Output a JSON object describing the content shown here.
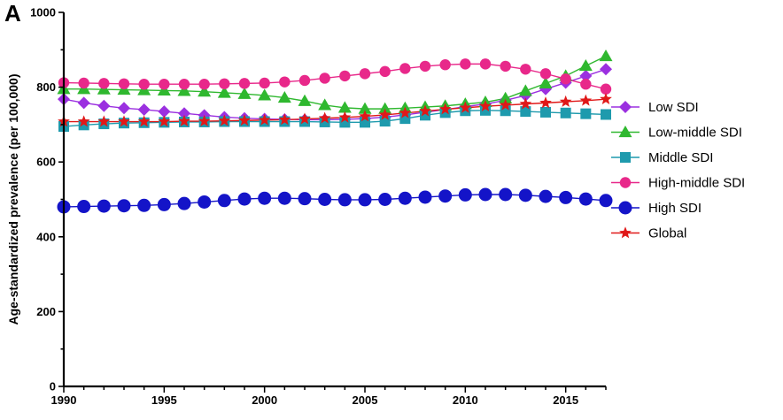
{
  "panel_label": "A",
  "chart_data": {
    "type": "line",
    "title": "",
    "xlabel": "",
    "ylabel": "Age-standardized prevalence (per 100,000)",
    "xlim": [
      1990,
      2017
    ],
    "ylim": [
      0,
      1000
    ],
    "x_ticks": [
      1990,
      1995,
      2000,
      2005,
      2010,
      2015
    ],
    "y_ticks": [
      0,
      200,
      400,
      600,
      800,
      1000
    ],
    "grid": false,
    "legend_position": "right",
    "x": [
      1990,
      1991,
      1992,
      1993,
      1994,
      1995,
      1996,
      1997,
      1998,
      1999,
      2000,
      2001,
      2002,
      2003,
      2004,
      2005,
      2006,
      2007,
      2008,
      2009,
      2010,
      2011,
      2012,
      2013,
      2014,
      2015,
      2016,
      2017
    ],
    "series": [
      {
        "name": "Low SDI",
        "color": "#9b30e0",
        "marker": "diamond",
        "values": [
          768,
          758,
          750,
          744,
          740,
          735,
          730,
          725,
          720,
          717,
          715,
          714,
          713,
          713,
          714,
          716,
          720,
          726,
          733,
          740,
          748,
          755,
          765,
          778,
          795,
          812,
          830,
          848
        ]
      },
      {
        "name": "Low-middle SDI",
        "color": "#2fb82f",
        "marker": "triangle",
        "values": [
          795,
          795,
          794,
          793,
          792,
          791,
          790,
          788,
          785,
          782,
          778,
          772,
          763,
          752,
          745,
          742,
          742,
          744,
          747,
          750,
          755,
          760,
          770,
          790,
          810,
          830,
          857,
          883
        ]
      },
      {
        "name": "Middle SDI",
        "color": "#1e9aad",
        "marker": "square",
        "values": [
          695,
          699,
          702,
          704,
          705,
          706,
          707,
          707,
          708,
          708,
          708,
          708,
          708,
          707,
          706,
          706,
          709,
          716,
          725,
          732,
          737,
          738,
          737,
          735,
          733,
          731,
          729,
          727
        ]
      },
      {
        "name": "High-middle SDI",
        "color": "#e8288a",
        "marker": "circle",
        "values": [
          812,
          811,
          810,
          809,
          808,
          808,
          808,
          808,
          809,
          810,
          811,
          814,
          818,
          824,
          830,
          836,
          842,
          850,
          856,
          860,
          862,
          862,
          856,
          848,
          836,
          822,
          808,
          795
        ]
      },
      {
        "name": "High SDI",
        "color": "#1414c8",
        "marker": "circle",
        "values": [
          480,
          481,
          482,
          483,
          484,
          486,
          489,
          493,
          497,
          501,
          503,
          503,
          502,
          500,
          499,
          499,
          500,
          503,
          506,
          509,
          512,
          513,
          513,
          511,
          508,
          505,
          501,
          497
        ]
      },
      {
        "name": "Global",
        "color": "#e01818",
        "marker": "star",
        "values": [
          708,
          708,
          708,
          708,
          708,
          708,
          709,
          709,
          710,
          711,
          712,
          713,
          715,
          717,
          719,
          722,
          726,
          731,
          736,
          741,
          745,
          749,
          752,
          755,
          758,
          761,
          764,
          768
        ]
      }
    ]
  }
}
